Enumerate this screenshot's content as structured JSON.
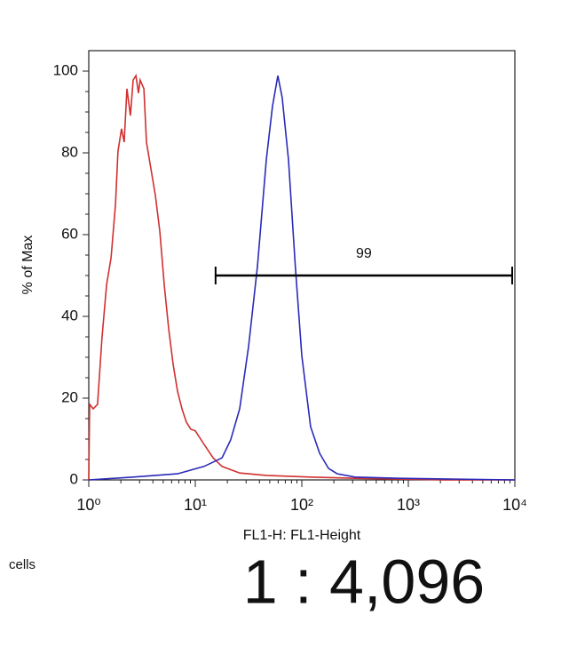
{
  "chart_data": {
    "type": "line",
    "x_label": "FL1-H: FL1-Height",
    "y_label": "% of Max",
    "xscale": "log",
    "xlim": [
      1,
      10000
    ],
    "ylim": [
      0,
      105
    ],
    "xticks": [
      {
        "value": 1,
        "label": "10⁰"
      },
      {
        "value": 10,
        "label": "10¹"
      },
      {
        "value": 100,
        "label": "10²"
      },
      {
        "value": 1000,
        "label": "10³"
      },
      {
        "value": 10000,
        "label": "10⁴"
      }
    ],
    "yticks": [
      0,
      20,
      40,
      60,
      80,
      100
    ],
    "series": [
      {
        "color": "#d03030",
        "x": [
          1,
          1.02,
          1.1,
          1.21,
          1.33,
          1.47,
          1.62,
          1.78,
          1.88,
          2.03,
          2.15,
          2.28,
          2.46,
          2.61,
          2.77,
          2.93,
          3.04,
          3.29,
          3.48,
          3.83,
          4.22,
          4.64,
          5.11,
          5.62,
          6.19,
          6.81,
          7.5,
          8.25,
          9.09,
          10,
          12.1,
          14.7,
          17.8,
          26.1,
          46.4,
          121,
          316,
          826,
          2154,
          10000
        ],
        "values": [
          0,
          18.5,
          17.4,
          18.5,
          34.8,
          47.8,
          54.3,
          67.4,
          80.4,
          85.9,
          82.6,
          95.7,
          89.1,
          97.8,
          98.9,
          94.6,
          97.8,
          95.7,
          82.6,
          76.1,
          69.6,
          60.9,
          47.8,
          37,
          28.3,
          21.7,
          17.4,
          14.1,
          12.4,
          12,
          8.7,
          5.4,
          3.3,
          1.7,
          1.1,
          0.7,
          0.4,
          0.2,
          0,
          0
        ]
      },
      {
        "color": "#2a2ab8",
        "x": [
          1,
          2.61,
          6.81,
          12.1,
          17.8,
          21.5,
          26.1,
          31.6,
          38.3,
          46.4,
          53,
          59.6,
          65.4,
          75,
          87,
          100,
          121,
          147,
          178,
          215,
          316,
          826,
          10000
        ],
        "values": [
          0,
          0.7,
          1.5,
          3.3,
          5.4,
          9.8,
          17.4,
          32.6,
          52.2,
          78.3,
          91.3,
          98.9,
          93.5,
          78.3,
          52.2,
          30.4,
          13,
          6.5,
          2.8,
          1.5,
          0.7,
          0.4,
          0
        ]
      }
    ],
    "gate": {
      "x": [
        15.5,
        9440
      ],
      "y": 50,
      "label": "99"
    },
    "side_label": "cells",
    "dilution": "1 : 4,096"
  }
}
